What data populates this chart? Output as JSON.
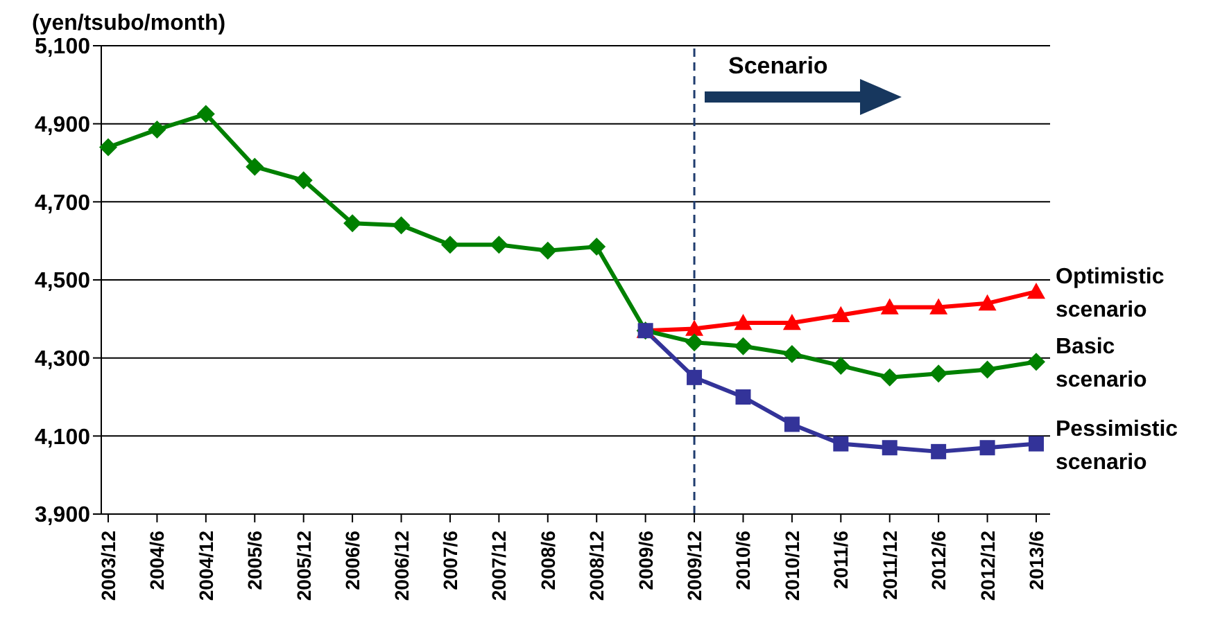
{
  "chart_data": {
    "type": "line",
    "ylabel": "(yen/tsubo/month)",
    "annotations": [
      "Scenario"
    ],
    "categories": [
      "2003/12",
      "2004/6",
      "2004/12",
      "2005/6",
      "2005/12",
      "2006/6",
      "2006/12",
      "2007/6",
      "2007/12",
      "2008/6",
      "2008/12",
      "2009/6",
      "2009/12",
      "2010/6",
      "2010/12",
      "2011/6",
      "2011/12",
      "2012/6",
      "2012/12",
      "2013/6"
    ],
    "series": [
      {
        "name": "Optimistic scenario",
        "color": "#ff0000",
        "marker": "triangle",
        "values": [
          null,
          null,
          null,
          null,
          null,
          null,
          null,
          null,
          null,
          null,
          null,
          4370,
          4375,
          4390,
          4390,
          4410,
          4430,
          4430,
          4440,
          4470
        ]
      },
      {
        "name": "Basic scenario",
        "color": "#008000",
        "marker": "diamond",
        "values": [
          4840,
          4885,
          4925,
          4790,
          4755,
          4645,
          4640,
          4590,
          4590,
          4575,
          4585,
          4370,
          4340,
          4330,
          4310,
          4280,
          4250,
          4260,
          4270,
          4290
        ]
      },
      {
        "name": "Pessimistic scenario",
        "color": "#333399",
        "marker": "square",
        "values": [
          null,
          null,
          null,
          null,
          null,
          null,
          null,
          null,
          null,
          null,
          null,
          4370,
          4250,
          4200,
          4130,
          4080,
          4070,
          4060,
          4070,
          4080
        ]
      }
    ],
    "ylim": [
      3900,
      5100
    ],
    "yticks": [
      {
        "value": 3900,
        "label": "3,900"
      },
      {
        "value": 4100,
        "label": "4,100"
      },
      {
        "value": 4300,
        "label": "4,300"
      },
      {
        "value": 4500,
        "label": "4,500"
      },
      {
        "value": 4700,
        "label": "4,700"
      },
      {
        "value": 4900,
        "label": "4,900"
      },
      {
        "value": 5100,
        "label": "5,100"
      }
    ],
    "grid": "y",
    "legend": false,
    "line_style": "solid",
    "ref_lines": [
      {
        "axis": "x",
        "value": "2009/12",
        "color": "#1f3c6e",
        "line_style": "dashed"
      }
    ]
  }
}
